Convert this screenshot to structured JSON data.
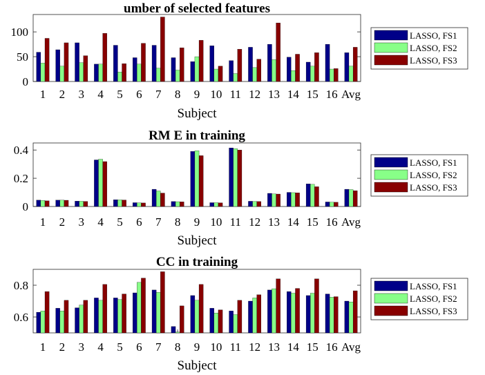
{
  "colors": {
    "fs1": "#000088",
    "fs2": "#88ff88",
    "fs3": "#880000"
  },
  "chart_data": [
    {
      "type": "bar",
      "title": "umber of selected features",
      "xlabel": "Subject",
      "ylabel": "",
      "ylim": [
        0,
        135
      ],
      "yticks": [
        0,
        50,
        100
      ],
      "ytick_labels": [
        "0",
        "50",
        "100"
      ],
      "categories": [
        "1",
        "2",
        "3",
        "4",
        "5",
        "6",
        "7",
        "8",
        "9",
        "10",
        "11",
        "12",
        "13",
        "14",
        "15",
        "16",
        "Avg"
      ],
      "legend_position": "right",
      "series": [
        {
          "name": "LASSO, FS1",
          "values": [
            59,
            64,
            78,
            35,
            73,
            48,
            73,
            48,
            40,
            72,
            42,
            69,
            75,
            49,
            39,
            75,
            58
          ]
        },
        {
          "name": "LASSO, FS2",
          "values": [
            37,
            31,
            38,
            35,
            19,
            35,
            27,
            23,
            50,
            25,
            16,
            28,
            44,
            22,
            31,
            25,
            31
          ]
        },
        {
          "name": "LASSO, FS3",
          "values": [
            87,
            78,
            52,
            97,
            36,
            77,
            130,
            68,
            83,
            31,
            65,
            45,
            118,
            55,
            58,
            26,
            69
          ]
        }
      ]
    },
    {
      "type": "bar",
      "title": "RM E in training",
      "xlabel": "Subject",
      "ylabel": "",
      "ylim": [
        0,
        0.45
      ],
      "yticks": [
        0,
        0.2,
        0.4
      ],
      "ytick_labels": [
        "0",
        "0.2",
        "0.4"
      ],
      "categories": [
        "1",
        "2",
        "3",
        "4",
        "5",
        "6",
        "7",
        "8",
        "9",
        "10",
        "11",
        "12",
        "13",
        "14",
        "15",
        "16",
        "Avg"
      ],
      "legend_position": "right",
      "series": [
        {
          "name": "LASSO, FS1",
          "values": [
            0.045,
            0.045,
            0.038,
            0.33,
            0.048,
            0.027,
            0.122,
            0.035,
            0.39,
            0.027,
            0.415,
            0.037,
            0.093,
            0.1,
            0.16,
            0.032,
            0.122
          ]
        },
        {
          "name": "LASSO, FS2",
          "values": [
            0.043,
            0.045,
            0.037,
            0.335,
            0.047,
            0.026,
            0.11,
            0.034,
            0.395,
            0.027,
            0.41,
            0.036,
            0.089,
            0.098,
            0.157,
            0.031,
            0.12
          ]
        },
        {
          "name": "LASSO, FS3",
          "values": [
            0.04,
            0.044,
            0.036,
            0.318,
            0.046,
            0.025,
            0.095,
            0.033,
            0.36,
            0.026,
            0.4,
            0.035,
            0.088,
            0.097,
            0.14,
            0.03,
            0.112
          ]
        }
      ]
    },
    {
      "type": "bar",
      "title": "CC in training",
      "xlabel": "Subject",
      "ylabel": "",
      "ylim": [
        0.5,
        0.9
      ],
      "yticks": [
        0.6,
        0.8
      ],
      "ytick_labels": [
        "0.6",
        "0.8"
      ],
      "categories": [
        "1",
        "2",
        "3",
        "4",
        "5",
        "6",
        "7",
        "8",
        "9",
        "10",
        "11",
        "12",
        "13",
        "14",
        "15",
        "16",
        "Avg"
      ],
      "legend_position": "right",
      "series": [
        {
          "name": "LASSO, FS1",
          "values": [
            0.63,
            0.655,
            0.658,
            0.72,
            0.72,
            0.752,
            0.77,
            0.54,
            0.735,
            0.655,
            0.638,
            0.7,
            0.77,
            0.76,
            0.735,
            0.745,
            0.7
          ]
        },
        {
          "name": "LASSO, FS2",
          "values": [
            0.638,
            0.638,
            0.675,
            0.705,
            0.71,
            0.818,
            0.755,
            0.505,
            0.705,
            0.625,
            0.615,
            0.72,
            0.778,
            0.75,
            0.75,
            0.725,
            0.695
          ]
        },
        {
          "name": "LASSO, FS3",
          "values": [
            0.76,
            0.705,
            0.705,
            0.805,
            0.745,
            0.845,
            0.885,
            0.67,
            0.805,
            0.645,
            0.705,
            0.74,
            0.84,
            0.78,
            0.84,
            0.728,
            0.765
          ]
        }
      ]
    }
  ]
}
